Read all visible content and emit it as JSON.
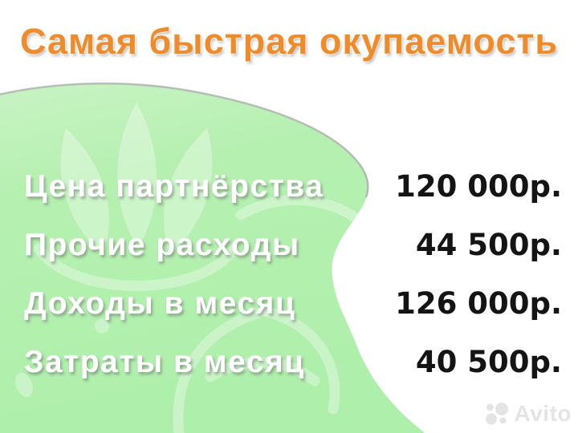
{
  "title": "Самая быстрая окупаемость",
  "rows": [
    {
      "label": "Цена партнёрства",
      "value": "120 000р."
    },
    {
      "label": "Прочие расходы",
      "value": "44 500р."
    },
    {
      "label": "Доходы в месяц",
      "value": "126 000р."
    },
    {
      "label": "Затраты в месяц",
      "value": "40 500р."
    }
  ],
  "watermark": {
    "text": "Avito",
    "icon": "avito-dots-icon"
  },
  "colors": {
    "title_orange": "#ee8b2c",
    "blob_green": "#aeefab",
    "blob_green_light": "#c9f3c4",
    "blob_edge_gray": "#a9a9a9",
    "pattern_white": "rgba(255,255,255,0.33)",
    "label_white": "#ffffff",
    "value_black": "#141414",
    "watermark_gray": "#e3e3e3",
    "background": "#ffffff"
  }
}
